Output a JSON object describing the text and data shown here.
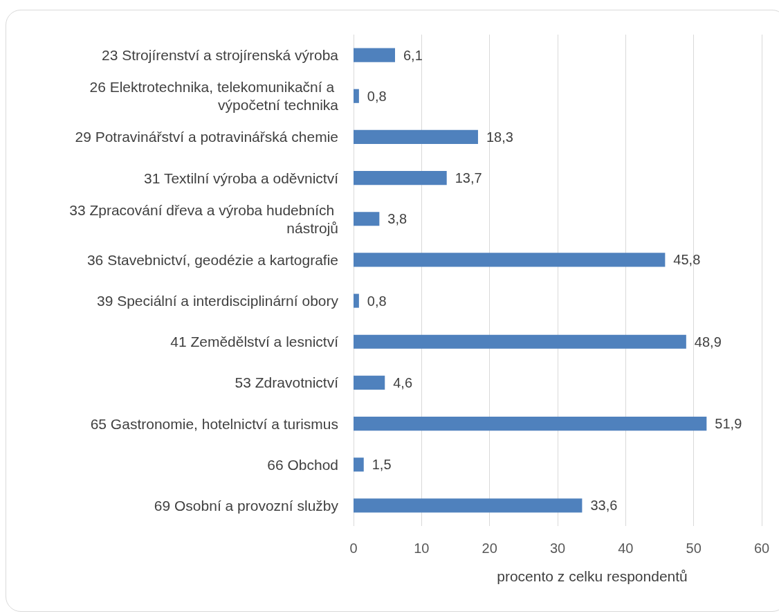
{
  "chart_data": {
    "type": "bar",
    "orientation": "horizontal",
    "xlabel": "procento z celku respondentů",
    "categories": [
      "23 Strojírenství a strojírenská výroba",
      "26 Elektrotechnika, telekomunikační a výpočetní technika",
      "29 Potravinářství a potravinářská chemie",
      "31 Textilní výroba a oděvnictví",
      "33 Zpracování dřeva a výroba hudebních nástrojů",
      "36 Stavebnictví, geodézie a kartografie",
      "39 Speciální a interdisciplinární obory",
      "41 Zemědělství a lesnictví",
      "53 Zdravotnictví",
      "65 Gastronomie, hotelnictví a turismus",
      "66 Obchod",
      "69 Osobní a provozní služby"
    ],
    "values": [
      6.1,
      0.8,
      18.3,
      13.7,
      3.8,
      45.8,
      0.8,
      48.9,
      4.6,
      51.9,
      1.5,
      33.6
    ],
    "value_labels": [
      "6,1",
      "0,8",
      "18,3",
      "13,7",
      "3,8",
      "45,8",
      "0,8",
      "48,9",
      "4,6",
      "51,9",
      "1,5",
      "33,6"
    ],
    "color": "#4f81bd",
    "xlim": [
      0,
      60
    ],
    "xticks": [
      0,
      10,
      20,
      30,
      40,
      50,
      60
    ],
    "grid": "x"
  }
}
